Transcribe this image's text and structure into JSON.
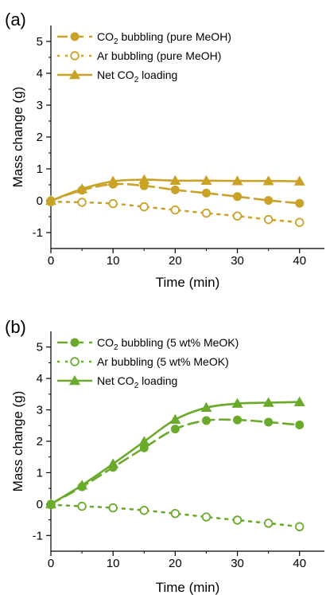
{
  "chart_data": [
    {
      "type": "line",
      "panel_label": "(a)",
      "xlabel": "Time (min)",
      "ylabel": "Mass change (g)",
      "xlim": [
        0,
        44
      ],
      "ylim": [
        -1.5,
        5.5
      ],
      "xticks": [
        0,
        10,
        20,
        30,
        40
      ],
      "yticks": [
        -1,
        0,
        1,
        2,
        3,
        4,
        5
      ],
      "color": "#C9A227",
      "legend_position": "top-left",
      "series": [
        {
          "name": "CO2 bubbling (pure MeOH)",
          "marker": "circle-filled",
          "line": "dashed",
          "x": [
            0,
            5,
            10,
            15,
            20,
            25,
            30,
            35,
            40
          ],
          "y": [
            0,
            0.33,
            0.52,
            0.47,
            0.34,
            0.24,
            0.13,
            0.01,
            -0.08
          ]
        },
        {
          "name": "Ar bubbling (pure MeOH)",
          "marker": "circle-open",
          "line": "dotted",
          "x": [
            0,
            5,
            10,
            15,
            20,
            25,
            30,
            35,
            40
          ],
          "y": [
            -0.03,
            -0.05,
            -0.09,
            -0.19,
            -0.29,
            -0.39,
            -0.48,
            -0.59,
            -0.68
          ]
        },
        {
          "name": "Net CO2 loading",
          "marker": "triangle-filled",
          "line": "solid",
          "x": [
            0,
            5,
            10,
            15,
            20,
            25,
            30,
            35,
            40
          ],
          "y": [
            0,
            0.37,
            0.61,
            0.66,
            0.63,
            0.63,
            0.62,
            0.62,
            0.61
          ]
        }
      ],
      "legend": [
        {
          "pre": "CO",
          "sub": "2",
          "post": " bubbling (pure MeOH)"
        },
        {
          "pre": "Ar bubbling (pure MeOH)",
          "sub": "",
          "post": ""
        },
        {
          "pre": "Net CO",
          "sub": "2",
          "post": " loading"
        }
      ]
    },
    {
      "type": "line",
      "panel_label": "(b)",
      "xlabel": "Time (min)",
      "ylabel": "Mass change (g)",
      "xlim": [
        0,
        44
      ],
      "ylim": [
        -1.5,
        5.5
      ],
      "xticks": [
        0,
        10,
        20,
        30,
        40
      ],
      "yticks": [
        -1,
        0,
        1,
        2,
        3,
        4,
        5
      ],
      "color": "#6AAA2A",
      "legend_position": "top-left",
      "series": [
        {
          "name": "CO2 bubbling (5 wt% MeOK)",
          "marker": "circle-filled",
          "line": "dashed",
          "x": [
            0,
            5,
            10,
            15,
            20,
            25,
            30,
            35,
            40
          ],
          "y": [
            0,
            0.55,
            1.17,
            1.79,
            2.39,
            2.66,
            2.68,
            2.61,
            2.52
          ]
        },
        {
          "name": "Ar bubbling (5 wt% MeOK)",
          "marker": "circle-open",
          "line": "dotted",
          "x": [
            0,
            5,
            10,
            15,
            20,
            25,
            30,
            35,
            40
          ],
          "y": [
            -0.02,
            -0.07,
            -0.12,
            -0.2,
            -0.3,
            -0.41,
            -0.51,
            -0.61,
            -0.72
          ]
        },
        {
          "name": "Net CO2 loading",
          "marker": "triangle-filled",
          "line": "solid",
          "x": [
            0,
            5,
            10,
            15,
            20,
            25,
            30,
            35,
            40
          ],
          "y": [
            0,
            0.6,
            1.28,
            1.99,
            2.69,
            3.07,
            3.2,
            3.23,
            3.25
          ]
        }
      ],
      "legend": [
        {
          "pre": "CO",
          "sub": "2",
          "post": " bubbling (5 wt% MeOK)"
        },
        {
          "pre": "Ar bubbling (5 wt% MeOK)",
          "sub": "",
          "post": ""
        },
        {
          "pre": "Net CO",
          "sub": "2",
          "post": " loading"
        }
      ]
    }
  ]
}
